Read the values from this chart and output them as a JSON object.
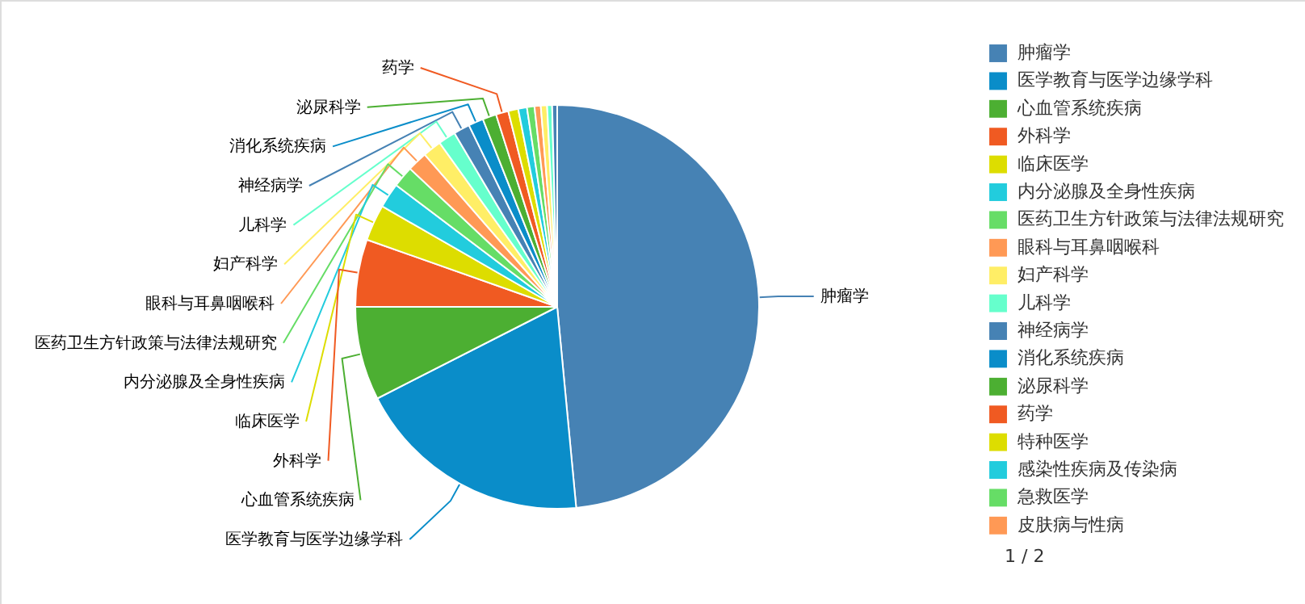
{
  "chart_data": {
    "type": "pie",
    "categories": [
      "肿瘤学",
      "医学教育与医学边缘学科",
      "心血管系统疾病",
      "外科学",
      "临床医学",
      "内分泌腺及全身性疾病",
      "医药卫生方针政策与法律法规研究",
      "眼科与耳鼻咽喉科",
      "妇产科学",
      "儿科学",
      "神经病学",
      "消化系统疾病",
      "泌尿科学",
      "药学",
      "特种医学",
      "感染性疾病及传染病",
      "急救医学",
      "皮肤病与性病",
      null,
      null,
      null
    ],
    "values": [
      48.5,
      19,
      7.5,
      5.4,
      2.9,
      2.0,
      1.7,
      1.6,
      1.5,
      1.4,
      1.3,
      1.2,
      1.1,
      1.0,
      0.8,
      0.7,
      0.6,
      0.5,
      0.5,
      0.4,
      0.4
    ],
    "colors": [
      "#4682b4",
      "#0a8dc9",
      "#4caf32",
      "#f05a22",
      "#dddd00",
      "#22ccdd",
      "#66dd66",
      "#ff9955",
      "#ffee66",
      "#66ffcc",
      "#4682b4",
      "#0a8dc9",
      "#4caf32",
      "#f05a22",
      "#dddd00",
      "#22ccdd",
      "#66dd66",
      "#ff9955",
      "#ffee66",
      "#66ffcc",
      "#4682b4"
    ],
    "legend": "right",
    "annotations": [
      "1 / 2"
    ]
  }
}
